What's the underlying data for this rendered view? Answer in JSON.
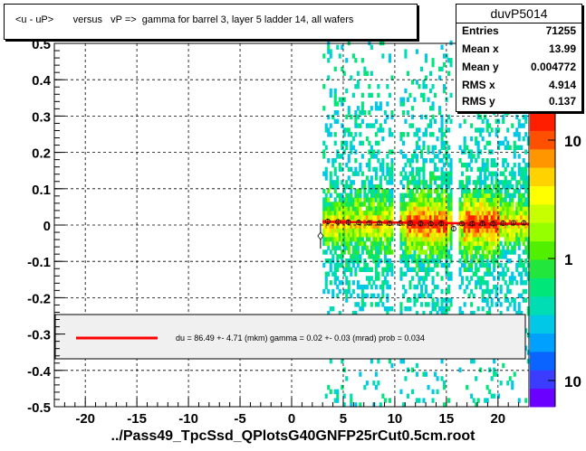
{
  "title": "<u - uP>       versus   vP =>  gamma for barrel 3, layer 5 ladder 14, all wafers",
  "stats": {
    "name": "duvP5014",
    "rows": [
      {
        "label": "Entries",
        "value": "71255"
      },
      {
        "label": "Mean x",
        "value": "13.99"
      },
      {
        "label": "Mean y",
        "value": "0.004772"
      },
      {
        "label": "RMS x",
        "value": "4.914"
      },
      {
        "label": "RMS y",
        "value": "0.137"
      }
    ]
  },
  "fit_text": "du =   86.49 +-  4.71 (mkm) gamma =    0.02 +-  0.03 (mrad) prob = 0.034",
  "footer": "../Pass49_TpcSsd_QPlotsG40GNFP25rCut0.5cm.root",
  "colors": {
    "fit_line": "#ff0000",
    "profile_marker": "#000000",
    "legend_bg": "#f0f0f0",
    "grid": "#000000"
  },
  "chart_data": {
    "type": "heatmap",
    "title": "<u - uP>       versus   vP =>  gamma for barrel 3, layer 5 ladder 14, all wafers",
    "xlabel": "",
    "ylabel": "",
    "xlim": [
      -23,
      23
    ],
    "ylim": [
      -0.5,
      0.5
    ],
    "x_ticks": [
      -20,
      -15,
      -10,
      -5,
      0,
      5,
      10,
      15,
      20
    ],
    "y_ticks": [
      -0.5,
      -0.4,
      -0.3,
      -0.2,
      -0.1,
      0,
      0.1,
      0.2,
      0.3,
      0.4,
      0.5
    ],
    "y_tick_labels": [
      "-0.5",
      "-0.4",
      "-0.3",
      "-0.2",
      "-0.1",
      "0",
      "0.1",
      "0.2",
      "0.3",
      "0.4",
      "0.5"
    ],
    "x_tick_labels": [
      "-20",
      "-15",
      "-10",
      "-5",
      "0",
      "5",
      "10",
      "15",
      "20"
    ],
    "grid": true,
    "colorbar": {
      "scale": "log",
      "tick_labels": [
        "10",
        "1",
        "10"
      ]
    },
    "data_x_range": [
      3,
      23
    ],
    "gaps_x": [
      [
        9.8,
        10.3
      ],
      [
        15.4,
        16.0
      ]
    ],
    "dense_bands_x": [
      [
        11,
        15
      ],
      [
        16.5,
        20
      ]
    ],
    "profile_points": [
      {
        "x": 2.8,
        "y": -0.03
      },
      {
        "x": 3.5,
        "y": 0.01
      },
      {
        "x": 4.5,
        "y": 0.009
      },
      {
        "x": 5.5,
        "y": 0.008
      },
      {
        "x": 6.5,
        "y": 0.007
      },
      {
        "x": 7.5,
        "y": 0.006
      },
      {
        "x": 8.5,
        "y": 0.006
      },
      {
        "x": 9.5,
        "y": 0.005
      },
      {
        "x": 10.5,
        "y": 0.005
      },
      {
        "x": 11.5,
        "y": 0.005
      },
      {
        "x": 12.5,
        "y": 0.004
      },
      {
        "x": 13.5,
        "y": 0.004
      },
      {
        "x": 14.5,
        "y": 0.004
      },
      {
        "x": 15.7,
        "y": -0.01
      },
      {
        "x": 16.5,
        "y": 0.004
      },
      {
        "x": 17.5,
        "y": 0.004
      },
      {
        "x": 18.5,
        "y": 0.004
      },
      {
        "x": 19.5,
        "y": 0.004
      },
      {
        "x": 20.5,
        "y": 0.005
      },
      {
        "x": 21.5,
        "y": 0.006
      },
      {
        "x": 22.5,
        "y": 0.006
      }
    ],
    "fit_line": {
      "x": [
        3,
        23
      ],
      "y": [
        0.009,
        0.003
      ]
    }
  }
}
